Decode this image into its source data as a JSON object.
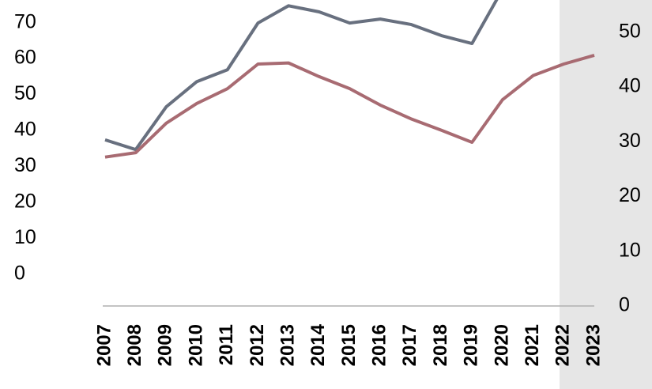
{
  "chart_data": {
    "type": "line",
    "categories": [
      "2007",
      "2008",
      "2009",
      "2010",
      "2011",
      "2012",
      "2013",
      "2014",
      "2015",
      "2016",
      "2017",
      "2018",
      "2019",
      "2020",
      "2021",
      "2022",
      "2023"
    ],
    "series": [
      {
        "color": "#68707f",
        "axis": "y",
        "values": [
          37.4,
          34.7,
          46.6,
          53.6,
          56.9,
          69.9,
          74.7,
          73.0,
          69.9,
          71.0,
          69.5,
          66.4,
          64.2,
          79.3,
          null,
          null,
          null
        ]
      },
      {
        "color": "#a86b72",
        "axis": "y2",
        "values": [
          27.2,
          28.0,
          33.4,
          37.0,
          39.7,
          44.2,
          44.4,
          41.9,
          39.7,
          36.7,
          34.2,
          32.1,
          29.9,
          37.7,
          42.1,
          44.2,
          45.8
        ]
      }
    ],
    "ylim": [
      -8.8,
      76.3
    ],
    "yticks": [
      0,
      10,
      20,
      30,
      40,
      50,
      60,
      70
    ],
    "y2lim": [
      0,
      55.9
    ],
    "y2ticks": [
      0,
      10,
      20,
      30,
      40,
      50
    ]
  }
}
